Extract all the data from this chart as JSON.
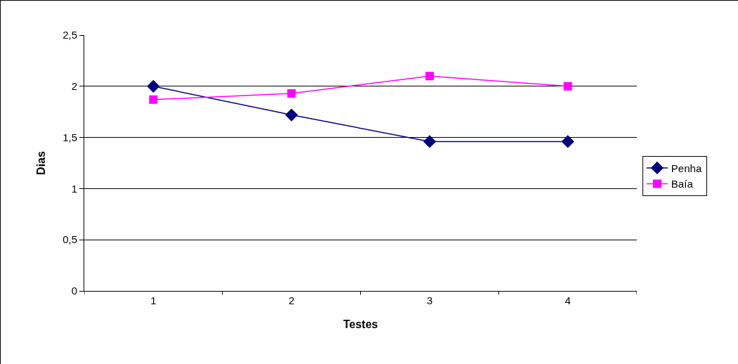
{
  "chart_data": {
    "type": "line",
    "xlabel": "Testes",
    "ylabel": "Dias",
    "categories": [
      "1",
      "2",
      "3",
      "4"
    ],
    "series": [
      {
        "name": "Penha",
        "color": "#000080",
        "marker": "diamond",
        "values": [
          2.0,
          1.72,
          1.46,
          1.46
        ]
      },
      {
        "name": "Baía",
        "color": "#ff00ff",
        "marker": "square",
        "values": [
          1.87,
          1.93,
          2.1,
          2.0
        ]
      }
    ],
    "ylim": [
      0,
      2.5
    ],
    "yticks": [
      0,
      {
        "value": 0.5,
        "label": "0,5"
      },
      1,
      {
        "value": 1.5,
        "label": "1,5"
      },
      2,
      {
        "value": 2.5,
        "label": "2,5"
      }
    ],
    "grid": "y",
    "legend": "right",
    "line_style": "solid"
  }
}
